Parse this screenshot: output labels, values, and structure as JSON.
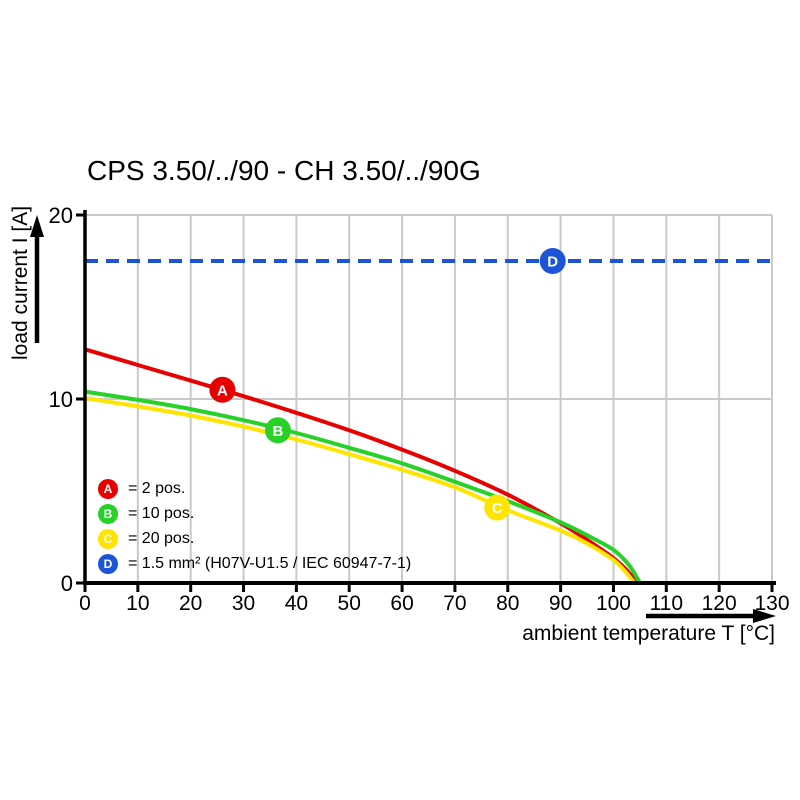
{
  "title": "CPS 3.50/../90 - CH 3.50/../90G",
  "chart_data": {
    "type": "line",
    "title": "CPS 3.50/../90 - CH 3.50/../90G",
    "xlabel": "ambient temperature T [°C]",
    "ylabel": "load current I [A]",
    "xlim": [
      0,
      130
    ],
    "ylim": [
      0,
      20
    ],
    "x_ticks": [
      0,
      10,
      20,
      30,
      40,
      50,
      60,
      70,
      80,
      90,
      100,
      110,
      120,
      130
    ],
    "y_ticks": [
      0,
      10,
      20
    ],
    "grid_color": "#c9c9c9",
    "horizontal_gridlines_at": [
      10,
      20
    ],
    "axis_color": "#000000",
    "series": [
      {
        "name": "A",
        "label": "2 pos.",
        "color": "#e60000",
        "dashed": false,
        "points": [
          [
            0,
            12.7
          ],
          [
            10,
            11.85
          ],
          [
            20,
            11.0
          ],
          [
            30,
            10.15
          ],
          [
            40,
            9.25
          ],
          [
            50,
            8.3
          ],
          [
            60,
            7.25
          ],
          [
            70,
            6.1
          ],
          [
            80,
            4.8
          ],
          [
            90,
            3.25
          ],
          [
            95,
            2.35
          ],
          [
            100,
            1.35
          ],
          [
            102.5,
            0.7
          ],
          [
            104.5,
            0
          ]
        ],
        "marker": {
          "letter": "A",
          "x": 26,
          "y": 10.5
        }
      },
      {
        "name": "C",
        "label": "20 pos.",
        "color": "#ffe400",
        "dashed": false,
        "points": [
          [
            0,
            10.05
          ],
          [
            10,
            9.6
          ],
          [
            20,
            9.1
          ],
          [
            30,
            8.5
          ],
          [
            40,
            7.8
          ],
          [
            50,
            7.0
          ],
          [
            60,
            6.15
          ],
          [
            70,
            5.2
          ],
          [
            80,
            3.95
          ],
          [
            90,
            2.85
          ],
          [
            95,
            2.15
          ],
          [
            100,
            1.25
          ],
          [
            102,
            0.7
          ],
          [
            104,
            0
          ]
        ],
        "marker": {
          "letter": "C",
          "x": 78,
          "y": 4.1
        }
      },
      {
        "name": "B",
        "label": "10 pos.",
        "color": "#27d127",
        "dashed": false,
        "points": [
          [
            0,
            10.4
          ],
          [
            10,
            9.95
          ],
          [
            20,
            9.45
          ],
          [
            30,
            8.85
          ],
          [
            40,
            8.15
          ],
          [
            50,
            7.35
          ],
          [
            60,
            6.5
          ],
          [
            70,
            5.5
          ],
          [
            80,
            4.45
          ],
          [
            90,
            3.3
          ],
          [
            95,
            2.6
          ],
          [
            100,
            1.8
          ],
          [
            103,
            0.95
          ],
          [
            105,
            0
          ]
        ],
        "marker": {
          "letter": "B",
          "x": 36.5,
          "y": 8.3
        }
      },
      {
        "name": "D",
        "label": "1.5 mm² (H07V-U1.5 / IEC 60947-7-1)",
        "color": "#1c54d8",
        "dashed": true,
        "points": [
          [
            0,
            17.5
          ],
          [
            130,
            17.5
          ]
        ],
        "marker": {
          "letter": "D",
          "x": 88.5,
          "y": 17.5
        }
      }
    ],
    "legend": {
      "position": "inside-bottom-left",
      "items": [
        {
          "letter": "A",
          "color": "#e60000",
          "text": "= 2 pos."
        },
        {
          "letter": "B",
          "color": "#27d127",
          "text": "= 10 pos."
        },
        {
          "letter": "C",
          "color": "#ffe400",
          "text": "= 20 pos."
        },
        {
          "letter": "D",
          "color": "#1c54d8",
          "text": "= 1.5 mm² (H07V-U1.5 / IEC 60947-7-1)"
        }
      ]
    }
  }
}
